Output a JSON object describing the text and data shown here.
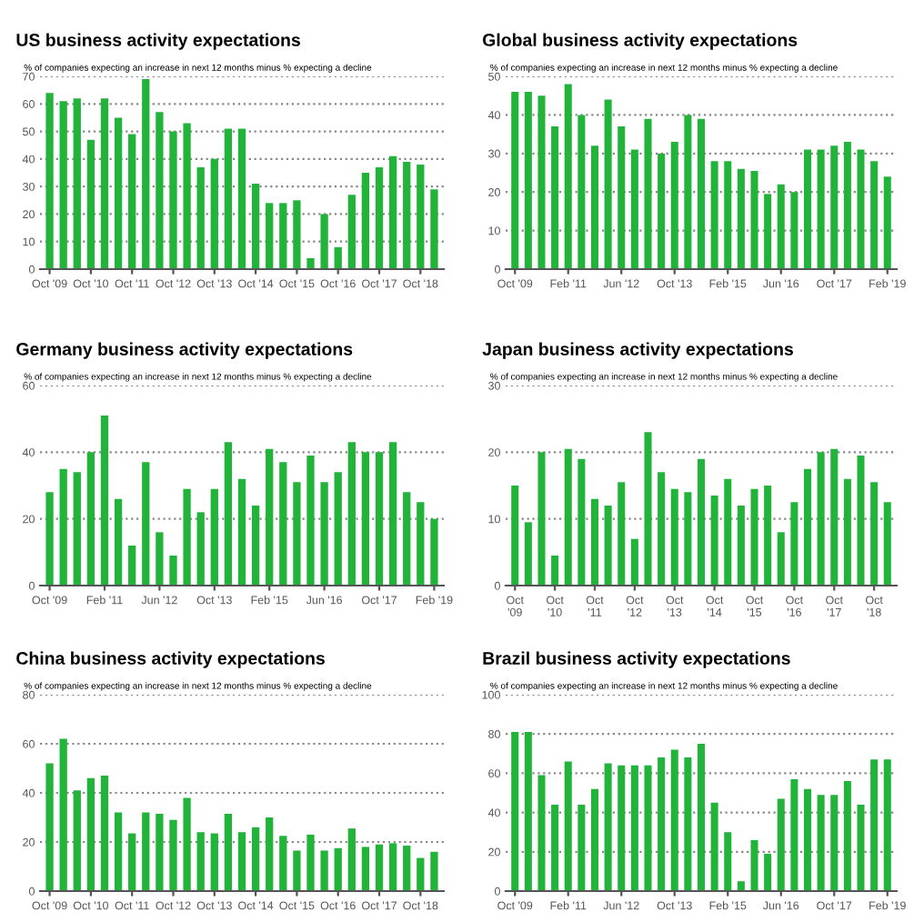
{
  "chart_data": [
    {
      "type": "bar",
      "title": "US business activity expectations",
      "subtitle": "% of companies expecting an increase in next 12 months minus % expecting a decline",
      "categories": [
        "Oct '09",
        null,
        null,
        "Oct '10",
        null,
        null,
        "Oct '11",
        null,
        null,
        "Oct '12",
        null,
        null,
        "Oct '13",
        null,
        null,
        "Oct '14",
        null,
        null,
        "Oct '15",
        null,
        null,
        "Oct '16",
        null,
        null,
        "Oct '17",
        null,
        null,
        "Oct '18",
        null
      ],
      "values": [
        64,
        61,
        62,
        47,
        62,
        55,
        49,
        69,
        57,
        50,
        53,
        37,
        40,
        51,
        51,
        31,
        24,
        24,
        25,
        4,
        20,
        8,
        27,
        35,
        37,
        41,
        39,
        38,
        29
      ],
      "color": "#22b33a",
      "ylim": [
        0,
        70
      ],
      "yticks": [
        0,
        10,
        20,
        30,
        40,
        50,
        60,
        70
      ],
      "grid": "y"
    },
    {
      "type": "bar",
      "title": "Global business activity expectations",
      "subtitle": "% of companies expecting an increase in next 12 months minus % expecting a decline",
      "categories": [
        "Oct '09",
        null,
        null,
        null,
        "Feb '11",
        null,
        null,
        null,
        "Jun '12",
        null,
        null,
        null,
        "Oct '13",
        null,
        null,
        null,
        "Feb '15",
        null,
        null,
        null,
        "Jun '16",
        null,
        null,
        null,
        "Oct '17",
        null,
        null,
        null,
        "Feb '19"
      ],
      "values": [
        46,
        46,
        45,
        37,
        48,
        40,
        32,
        44,
        37,
        31,
        39,
        30,
        33,
        40,
        39,
        28,
        28,
        26,
        25.5,
        19.5,
        22,
        20,
        31,
        31,
        32,
        33,
        31,
        28,
        24
      ],
      "color": "#22b33a",
      "ylim": [
        0,
        50
      ],
      "yticks": [
        0,
        10,
        20,
        30,
        40,
        50
      ],
      "grid": "y"
    },
    {
      "type": "bar",
      "title": "Germany business activity expectations",
      "subtitle": "% of companies expecting an increase in next 12 months minus % expecting a decline",
      "categories": [
        "Oct '09",
        null,
        null,
        null,
        "Feb '11",
        null,
        null,
        null,
        "Jun '12",
        null,
        null,
        null,
        "Oct '13",
        null,
        null,
        null,
        "Feb '15",
        null,
        null,
        null,
        "Jun '16",
        null,
        null,
        null,
        "Oct '17",
        null,
        null,
        null,
        "Feb '19"
      ],
      "values": [
        28,
        35,
        34,
        40,
        51,
        26,
        12,
        37,
        16,
        9,
        29,
        22,
        29,
        43,
        32,
        24,
        41,
        37,
        31,
        39,
        31,
        34,
        43,
        40,
        40,
        43,
        28,
        25,
        20
      ],
      "color": "#22b33a",
      "ylim": [
        0,
        60
      ],
      "yticks": [
        0,
        20,
        40,
        60
      ],
      "grid": "y"
    },
    {
      "type": "bar",
      "title": "Japan business activity expectations",
      "subtitle": "% of companies expecting an increase in next 12 months minus % expecting a decline",
      "categories": [
        "Oct\n'09",
        null,
        null,
        "Oct\n'10",
        null,
        null,
        "Oct\n'11",
        null,
        null,
        "Oct\n'12",
        null,
        null,
        "Oct\n'13",
        null,
        null,
        "Oct\n'14",
        null,
        null,
        "Oct\n'15",
        null,
        null,
        "Oct\n'16",
        null,
        null,
        "Oct\n'17",
        null,
        null,
        "Oct\n'18",
        null
      ],
      "values": [
        15,
        9.5,
        20,
        4.5,
        20.5,
        19,
        13,
        12,
        15.5,
        7,
        23,
        17,
        14.5,
        14,
        19,
        13.5,
        16,
        12,
        14.5,
        15,
        8,
        12.5,
        17.5,
        20,
        20.5,
        16,
        19.5,
        15.5,
        12.5
      ],
      "color": "#22b33a",
      "ylim": [
        0,
        30
      ],
      "yticks": [
        0,
        10,
        20,
        30
      ],
      "grid": "y"
    },
    {
      "type": "bar",
      "title": "China business activity expectations",
      "subtitle": "% of companies expecting an increase in next 12 months minus % expecting a decline",
      "categories": [
        "Oct '09",
        null,
        null,
        "Oct '10",
        null,
        null,
        "Oct '11",
        null,
        null,
        "Oct '12",
        null,
        null,
        "Oct '13",
        null,
        null,
        "Oct '14",
        null,
        null,
        "Oct '15",
        null,
        null,
        "Oct '16",
        null,
        null,
        "Oct '17",
        null,
        null,
        "Oct '18",
        null
      ],
      "values": [
        52,
        62,
        41,
        46,
        47,
        32,
        23.5,
        32,
        31.5,
        29,
        38,
        24,
        23.5,
        31.5,
        24,
        26,
        30,
        22.5,
        16.5,
        23,
        16.5,
        17.5,
        25.5,
        18,
        19,
        19.5,
        18.5,
        13.5,
        16
      ],
      "color": "#22b33a",
      "ylim": [
        0,
        80
      ],
      "yticks": [
        0,
        20,
        40,
        60,
        80
      ],
      "grid": "y"
    },
    {
      "type": "bar",
      "title": "Brazil business activity expectations",
      "subtitle": "% of companies expecting an increase in next 12 months minus % expecting a decline",
      "categories": [
        "Oct '09",
        null,
        null,
        null,
        "Feb '11",
        null,
        null,
        null,
        "Jun '12",
        null,
        null,
        null,
        "Oct '13",
        null,
        null,
        null,
        "Feb '15",
        null,
        null,
        null,
        "Jun '16",
        null,
        null,
        null,
        "Oct '17",
        null,
        null,
        null,
        "Feb '19"
      ],
      "values": [
        81,
        81,
        59,
        44,
        66,
        44,
        52,
        65,
        64,
        64,
        64,
        68,
        72,
        68,
        75,
        45,
        30,
        5,
        26,
        19,
        47,
        57,
        52,
        49,
        49,
        56,
        44,
        67,
        67
      ],
      "color": "#22b33a",
      "ylim": [
        0,
        100
      ],
      "yticks": [
        0,
        20,
        40,
        60,
        80,
        100
      ],
      "grid": "y"
    }
  ]
}
